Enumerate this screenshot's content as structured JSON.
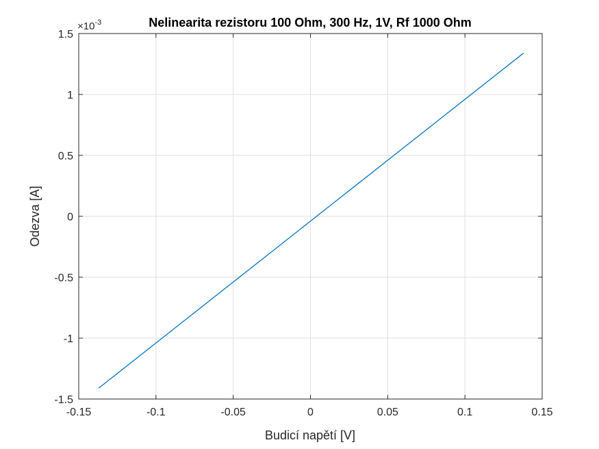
{
  "chart_data": {
    "type": "line",
    "title": "Nelinearita rezistoru 100 Ohm, 300 Hz, 1V, Rf 1000 Ohm",
    "xlabel": "Budicí napětí [V]",
    "ylabel": "Odezva [A]",
    "y_exponent_label": "×10",
    "y_exponent_power": "-3",
    "xlim": [
      -0.15,
      0.15
    ],
    "ylim": [
      -1.5,
      1.5
    ],
    "xticks": [
      -0.15,
      -0.1,
      -0.05,
      0,
      0.05,
      0.1,
      0.15
    ],
    "xtick_labels": [
      "-0.15",
      "-0.1",
      "-0.05",
      "0",
      "0.05",
      "0.1",
      "0.15"
    ],
    "yticks": [
      -1.5,
      -1,
      -0.5,
      0,
      0.5,
      1,
      1.5
    ],
    "ytick_labels": [
      "-1.5",
      "-1",
      "-0.5",
      "0",
      "0.5",
      "1",
      "1.5"
    ],
    "grid": true,
    "series": [
      {
        "color": "#0072bd",
        "x": [
          -0.137,
          0.138
        ],
        "y": [
          -1.41,
          1.34
        ]
      }
    ]
  }
}
